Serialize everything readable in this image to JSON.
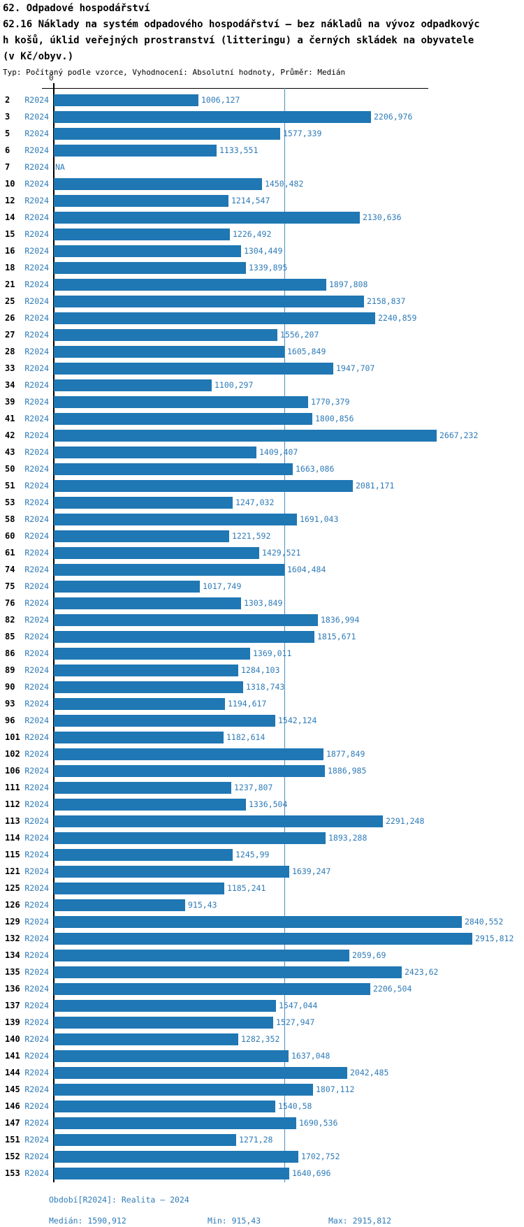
{
  "title": {
    "line1": "62. Odpadové hospodářství",
    "line2": "62.16 Náklady na systém odpadového hospodářství – bez nákladů na vývoz odpadkovýc",
    "line3": "h košů, úklid veřejných prostranství (litteringu) a černých skládek na obyvatele",
    "line4": "(v Kč/obyv.)",
    "subtitle": "Typ: Počítaný podle vzorce, Vyhodnocení: Absolutní hodnoty, Průměr: Medián"
  },
  "chart_data": {
    "type": "bar",
    "orientation": "horizontal",
    "title": "62.16 Náklady na systém odpadového hospodářství – bez nákladů na vývoz odpadkových košů, úklid veřejných prostranství (litteringu) a černých skládek na obyvatele (v Kč/obyv.)",
    "xlabel": "",
    "ylabel": "",
    "axis_zero_label": "0",
    "series_label": "R2024",
    "xlim": [
      0,
      3260
    ],
    "median_gridline": 1590.912,
    "legend_position": "none",
    "categories": [
      "2",
      "3",
      "5",
      "6",
      "7",
      "10",
      "12",
      "14",
      "15",
      "16",
      "18",
      "21",
      "25",
      "26",
      "27",
      "28",
      "33",
      "34",
      "39",
      "41",
      "42",
      "43",
      "50",
      "51",
      "53",
      "58",
      "60",
      "61",
      "74",
      "75",
      "76",
      "82",
      "85",
      "86",
      "89",
      "90",
      "93",
      "96",
      "101",
      "102",
      "106",
      "111",
      "112",
      "113",
      "114",
      "115",
      "121",
      "125",
      "126",
      "129",
      "132",
      "134",
      "135",
      "136",
      "137",
      "139",
      "140",
      "141",
      "144",
      "145",
      "146",
      "147",
      "151",
      "152",
      "153"
    ],
    "values": [
      1006.127,
      2206.976,
      1577.339,
      1133.551,
      null,
      1450.482,
      1214.547,
      2130.636,
      1226.492,
      1304.449,
      1339.895,
      1897.808,
      2158.837,
      2240.859,
      1556.207,
      1605.849,
      1947.707,
      1100.297,
      1770.379,
      1800.856,
      2667.232,
      1409.407,
      1663.086,
      2081.171,
      1247.032,
      1691.043,
      1221.592,
      1429.521,
      1604.484,
      1017.749,
      1303.849,
      1836.994,
      1815.671,
      1369.011,
      1284.103,
      1318.743,
      1194.617,
      1542.124,
      1182.614,
      1877.849,
      1886.985,
      1237.807,
      1336.504,
      2291.248,
      1893.288,
      1245.99,
      1639.247,
      1185.241,
      915.43,
      2840.552,
      2915.812,
      2059.69,
      2423.62,
      2206.504,
      1547.044,
      1527.947,
      1282.352,
      1637.048,
      2042.485,
      1807.112,
      1540.58,
      1690.536,
      1271.28,
      1702.752,
      1640.696
    ],
    "value_labels": [
      "1006,127",
      "2206,976",
      "1577,339",
      "1133,551",
      "NA",
      "1450,482",
      "1214,547",
      "2130,636",
      "1226,492",
      "1304,449",
      "1339,895",
      "1897,808",
      "2158,837",
      "2240,859",
      "1556,207",
      "1605,849",
      "1947,707",
      "1100,297",
      "1770,379",
      "1800,856",
      "2667,232",
      "1409,407",
      "1663,086",
      "2081,171",
      "1247,032",
      "1691,043",
      "1221,592",
      "1429,521",
      "1604,484",
      "1017,749",
      "1303,849",
      "1836,994",
      "1815,671",
      "1369,011",
      "1284,103",
      "1318,743",
      "1194,617",
      "1542,124",
      "1182,614",
      "1877,849",
      "1886,985",
      "1237,807",
      "1336,504",
      "2291,248",
      "1893,288",
      "1245,99",
      "1639,247",
      "1185,241",
      "915,43",
      "2840,552",
      "2915,812",
      "2059,69",
      "2423,62",
      "2206,504",
      "1547,044",
      "1527,947",
      "1282,352",
      "1637,048",
      "2042,485",
      "1807,112",
      "1540,58",
      "1690,536",
      "1271,28",
      "1702,752",
      "1640,696"
    ]
  },
  "footer": {
    "period": "Období[R2024]: Realita – 2024",
    "median": "Medián: 1590,912",
    "min": "Min: 915,43",
    "max": "Max: 2915,812"
  },
  "colors": {
    "bar": "#1f77b4",
    "label_text": "#2e7bb8",
    "median_line": "#4a90c4",
    "axis": "#000000"
  }
}
